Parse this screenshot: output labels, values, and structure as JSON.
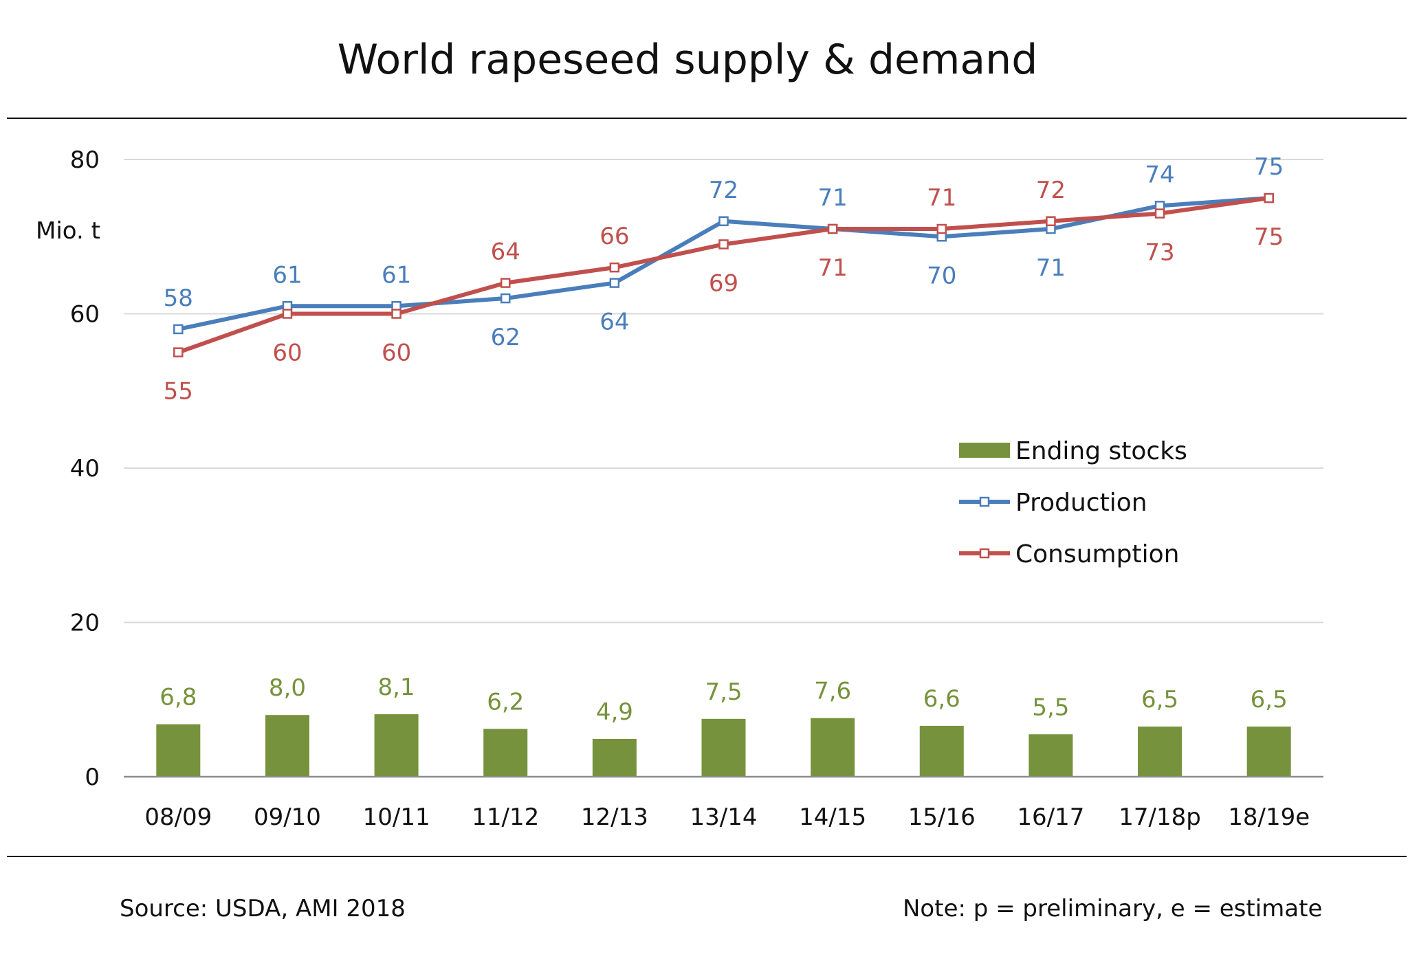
{
  "title": "World rapeseed supply & demand",
  "footer": {
    "source": "Source: USDA, AMI 2018",
    "note": "Note: p = preliminary, e = estimate"
  },
  "colors": {
    "stocks": "#76923c",
    "production": "#4a7ebb",
    "consumption": "#c0504d",
    "grid": "#d9d9d9",
    "axis": "#8c8c8c"
  },
  "chart_data": {
    "type": "bar+line",
    "title": "World rapeseed supply & demand",
    "ylabel": "Mio. t",
    "ylim": [
      0,
      80
    ],
    "yticks": [
      0,
      20,
      40,
      60,
      80
    ],
    "grid": true,
    "legend_position": "right-middle",
    "categories": [
      "08/09",
      "09/10",
      "10/11",
      "11/12",
      "12/13",
      "13/14",
      "14/15",
      "15/16",
      "16/17",
      "17/18p",
      "18/19e"
    ],
    "series": [
      {
        "name": "Ending stocks",
        "kind": "bar",
        "values": [
          6.8,
          8.0,
          8.1,
          6.2,
          4.9,
          7.5,
          7.6,
          6.6,
          5.5,
          6.5,
          6.5
        ],
        "labels": [
          "6,8",
          "8,0",
          "8,1",
          "6,2",
          "4,9",
          "7,5",
          "7,6",
          "6,6",
          "5,5",
          "6,5",
          "6,5"
        ]
      },
      {
        "name": "Production",
        "kind": "line",
        "values": [
          58,
          61,
          61,
          62,
          64,
          72,
          71,
          70,
          71,
          74,
          75
        ],
        "labels": [
          "58",
          "61",
          "61",
          "62",
          "64",
          "72",
          "71",
          "70",
          "71",
          "74",
          "75"
        ],
        "label_position": [
          "above",
          "above",
          "above",
          "below",
          "below",
          "above",
          "above",
          "below",
          "below",
          "above",
          "above"
        ]
      },
      {
        "name": "Consumption",
        "kind": "line",
        "values": [
          55,
          60,
          60,
          64,
          66,
          69,
          71,
          71,
          72,
          73,
          75
        ],
        "labels": [
          "55",
          "60",
          "60",
          "64",
          "66",
          "69",
          "71",
          "71",
          "72",
          "73",
          "75"
        ],
        "label_position": [
          "below",
          "below",
          "below",
          "above",
          "above",
          "below",
          "below",
          "above",
          "above",
          "below",
          "below"
        ]
      }
    ]
  }
}
